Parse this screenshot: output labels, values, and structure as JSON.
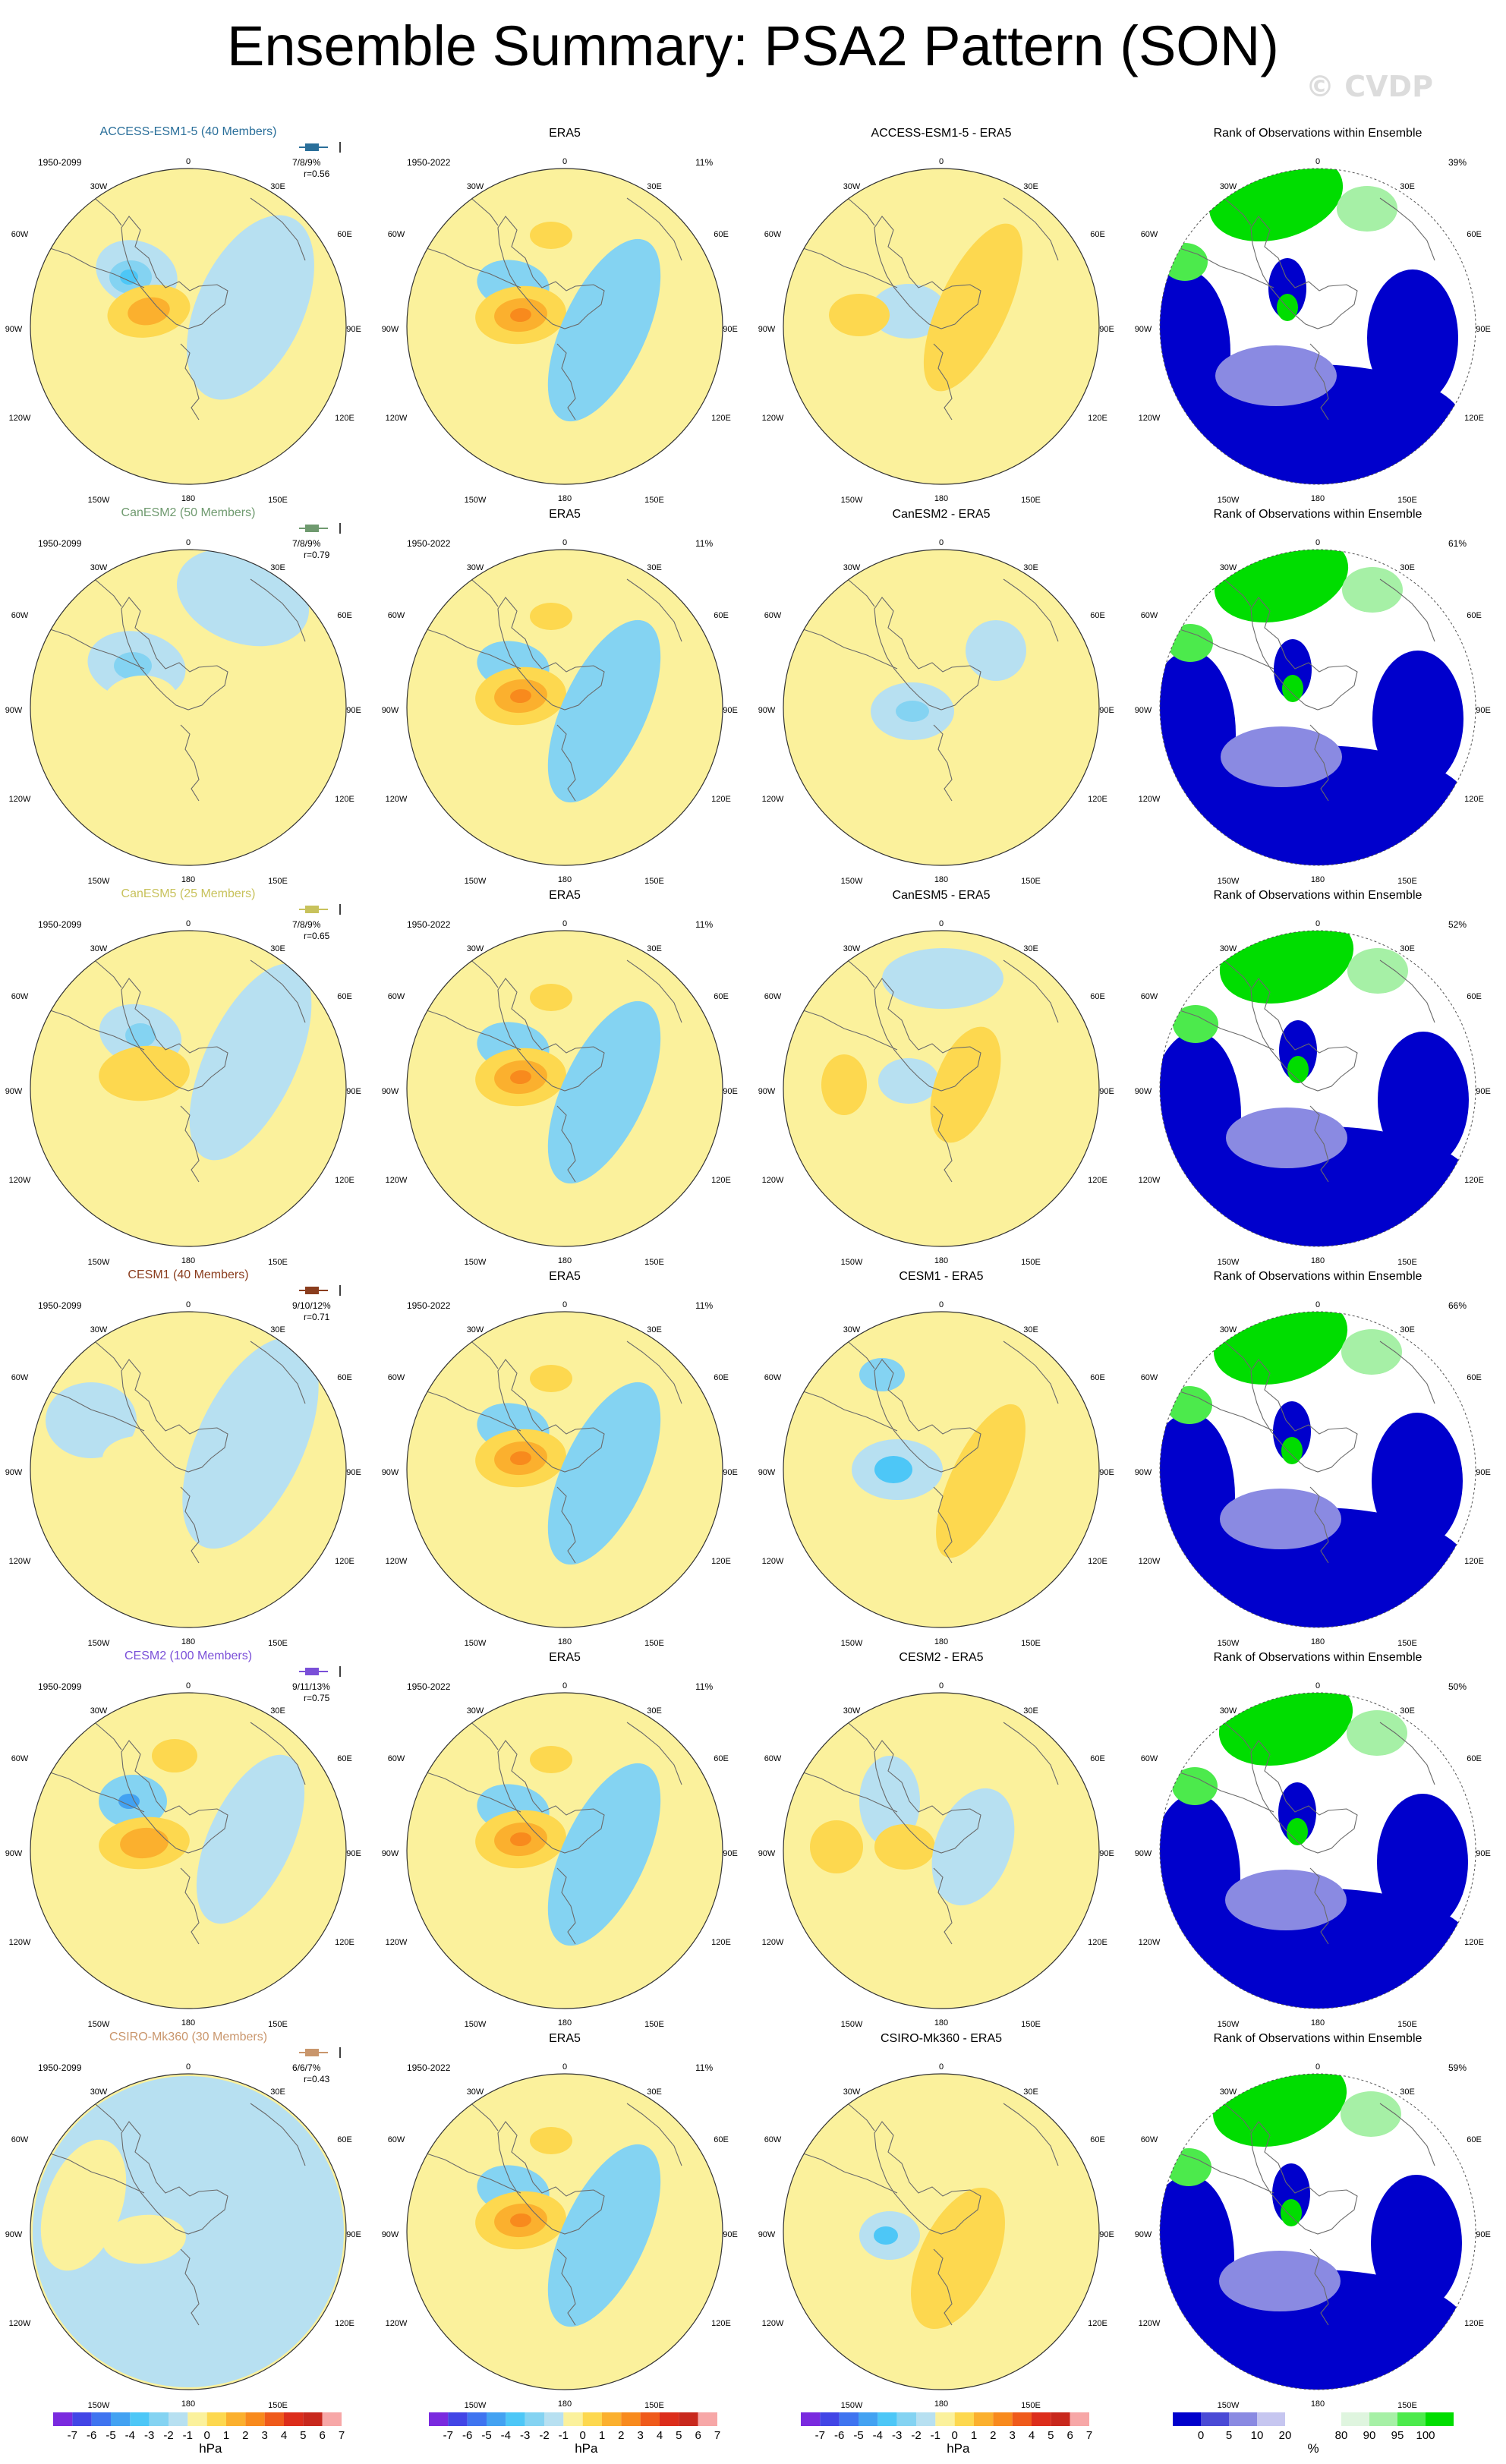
{
  "figure": {
    "title": "Ensemble Summary: PSA2 Pattern (SON)",
    "watermark": "© CVDP"
  },
  "colors": {
    "neg": [
      "#7a2adf",
      "#4245e6",
      "#3f74f0",
      "#43a2f2",
      "#4dc7f7",
      "#84d3f2",
      "#b7e0f1"
    ],
    "pos": [
      "#fbf19c",
      "#fdd84f",
      "#fbb02e",
      "#f88a1d",
      "#ef5a1b",
      "#dc2d1b",
      "#c8281d",
      "#f7a7a7"
    ],
    "rank": [
      "#0000cc",
      "#4a4ad6",
      "#8a8ae2",
      "#c6c6f0",
      "#ffffff",
      "#ffffff",
      "#dff5df",
      "#a6f0a6",
      "#4cea4c",
      "#00dd00"
    ]
  },
  "map_labels": {
    "top": "0",
    "ne": "30E",
    "e1": "60E",
    "e2": "90E",
    "e3": "120E",
    "se": "150E",
    "bottom": "180",
    "sw": "150W",
    "w3": "120W",
    "w2": "90W",
    "w1": "60W",
    "nw": "30W"
  },
  "chart_data": {
    "type": "heatmap",
    "units": "hPa",
    "rows": [
      {
        "model": "ACCESS-ESM1-5 (40 Members)",
        "color": "#2a6f9a",
        "period": "1950-2099",
        "pct": "7/8/9%",
        "r": "r=0.56",
        "obs_title": "ERA5",
        "obs_period": "1950-2022",
        "obs_pct": "11%",
        "diff_title": "ACCESS-ESM1-5 - ERA5",
        "rank_title": "Rank of Observations within Ensemble",
        "rank_pct": "39%"
      },
      {
        "model": "CanESM2 (50 Members)",
        "color": "#6f9a6f",
        "period": "1950-2099",
        "pct": "7/8/9%",
        "r": "r=0.79",
        "obs_title": "ERA5",
        "obs_period": "1950-2022",
        "obs_pct": "11%",
        "diff_title": "CanESM2 - ERA5",
        "rank_title": "Rank of Observations within Ensemble",
        "rank_pct": "61%"
      },
      {
        "model": "CanESM5 (25 Members)",
        "color": "#c8c25c",
        "period": "1950-2099",
        "pct": "7/8/9%",
        "r": "r=0.65",
        "obs_title": "ERA5",
        "obs_period": "1950-2022",
        "obs_pct": "11%",
        "diff_title": "CanESM5 - ERA5",
        "rank_title": "Rank of Observations within Ensemble",
        "rank_pct": "52%"
      },
      {
        "model": "CESM1 (40 Members)",
        "color": "#8a3d1e",
        "period": "1950-2099",
        "pct": "9/10/12%",
        "r": "r=0.71",
        "obs_title": "ERA5",
        "obs_period": "1950-2022",
        "obs_pct": "11%",
        "diff_title": "CESM1 - ERA5",
        "rank_title": "Rank of Observations within Ensemble",
        "rank_pct": "66%"
      },
      {
        "model": "CESM2 (100 Members)",
        "color": "#7a4fd8",
        "period": "1950-2099",
        "pct": "9/11/13%",
        "r": "r=0.75",
        "obs_title": "ERA5",
        "obs_period": "1950-2022",
        "obs_pct": "11%",
        "diff_title": "CESM2 - ERA5",
        "rank_title": "Rank of Observations within Ensemble",
        "rank_pct": "50%"
      },
      {
        "model": "CSIRO-Mk360 (30 Members)",
        "color": "#c9966c",
        "period": "1950-2099",
        "pct": "6/6/7%",
        "r": "r=0.43",
        "obs_title": "ERA5",
        "obs_period": "1950-2022",
        "obs_pct": "11%",
        "diff_title": "CSIRO-Mk360 - ERA5",
        "rank_title": "Rank of Observations within Ensemble",
        "rank_pct": "59%"
      }
    ],
    "colorbar": {
      "ticks": [
        "-7",
        "-6",
        "-5",
        "-4",
        "-3",
        "-2",
        "-1",
        "0",
        "1",
        "2",
        "3",
        "4",
        "5",
        "6",
        "7"
      ],
      "label": "hPa"
    },
    "rank_colorbar": {
      "ticks": [
        "0",
        "5",
        "10",
        "20",
        "80",
        "90",
        "95",
        "100"
      ],
      "label": "%"
    }
  }
}
